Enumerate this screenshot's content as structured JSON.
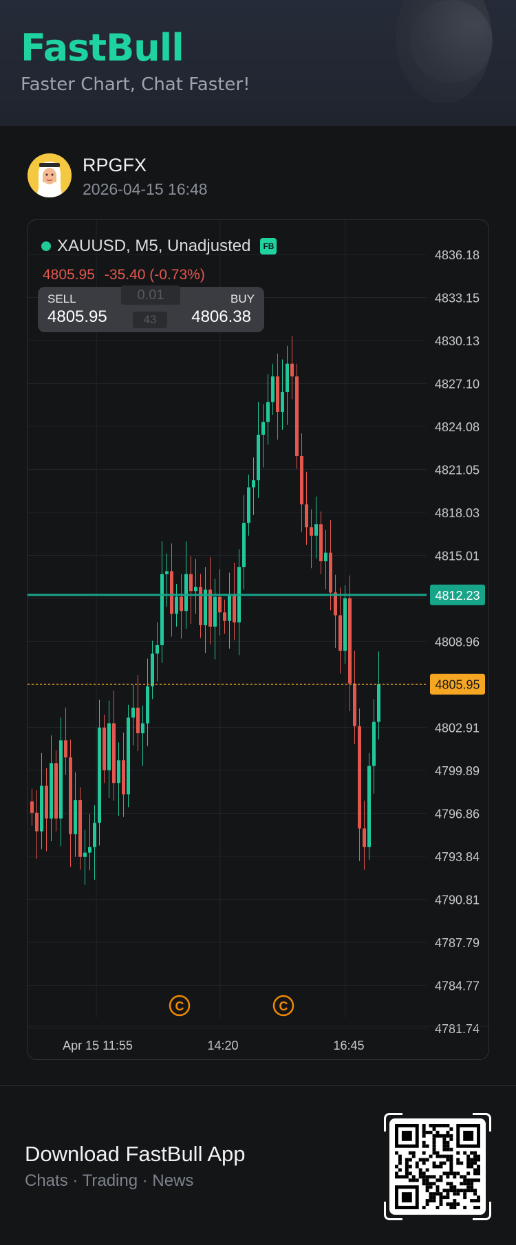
{
  "header": {
    "brand": "FastBull",
    "tagline": "Faster Chart, Chat Faster!"
  },
  "post": {
    "username": "RPGFX",
    "timestamp": "2026-04-15 16:48"
  },
  "chart": {
    "symbol_label": "XAUUSD, M5, Unadjusted",
    "badge": "FB",
    "last_price": "4805.95",
    "change": "-35.40 (-0.73%)",
    "sell_label": "SELL",
    "sell_price": "4805.95",
    "buy_label": "BUY",
    "buy_price": "4806.38",
    "lot": "0.01",
    "spread": "43",
    "price_ticks": [
      "4836.18",
      "4833.15",
      "4830.13",
      "4827.10",
      "4824.08",
      "4821.05",
      "4818.03",
      "4815.01",
      "4812.23",
      "4808.96",
      "4805.95",
      "4802.91",
      "4799.89",
      "4796.86",
      "4793.84",
      "4790.81",
      "4787.79",
      "4784.77",
      "4781.74"
    ],
    "time_ticks": [
      "Apr 15 11:55",
      "14:20",
      "16:45"
    ],
    "marker_symbol": "C",
    "colors": {
      "up": "#21c89a",
      "down": "#e4574e",
      "hline": "#17a58a",
      "current": "#f5a623"
    }
  },
  "chart_data": {
    "type": "candlestick",
    "title": "XAUUSD, M5, Unadjusted",
    "ylim": [
      4781.74,
      4836.18
    ],
    "horizontal_line": 4812.23,
    "current_price": 4805.95,
    "closes": [
      4796.9,
      4795.6,
      4798.8,
      4796.5,
      4800.4,
      4796.5,
      4802.0,
      4800.8,
      4795.4,
      4797.8,
      4793.8,
      4794.1,
      4794.5,
      4796.2,
      4802.9,
      4799.9,
      4803.2,
      4799.0,
      4800.6,
      4798.2,
      4803.6,
      4804.3,
      4802.5,
      4803.2,
      4805.8,
      4808.1,
      4808.7,
      4813.7,
      4813.9,
      4810.9,
      4812.1,
      4811.1,
      4813.7,
      4812.5,
      4812.8,
      4810.1,
      4812.6,
      4810.0,
      4812.1,
      4811.0,
      4810.4,
      4812.2,
      4810.3,
      4814.2,
      4817.3,
      4819.8,
      4820.3,
      4823.5,
      4824.4,
      4825.8,
      4827.6,
      4825.1,
      4826.5,
      4828.5,
      4827.6,
      4822.0,
      4818.6,
      4817.0,
      4816.4,
      4817.2,
      4814.6,
      4815.2,
      4812.4,
      4810.8,
      4808.3,
      4812.0,
      4806.0,
      4803.0,
      4795.8,
      4794.5,
      4800.2,
      4803.3,
      4805.95
    ],
    "time_labels": [
      "Apr 15 11:55",
      "14:20",
      "16:45"
    ]
  }
}
